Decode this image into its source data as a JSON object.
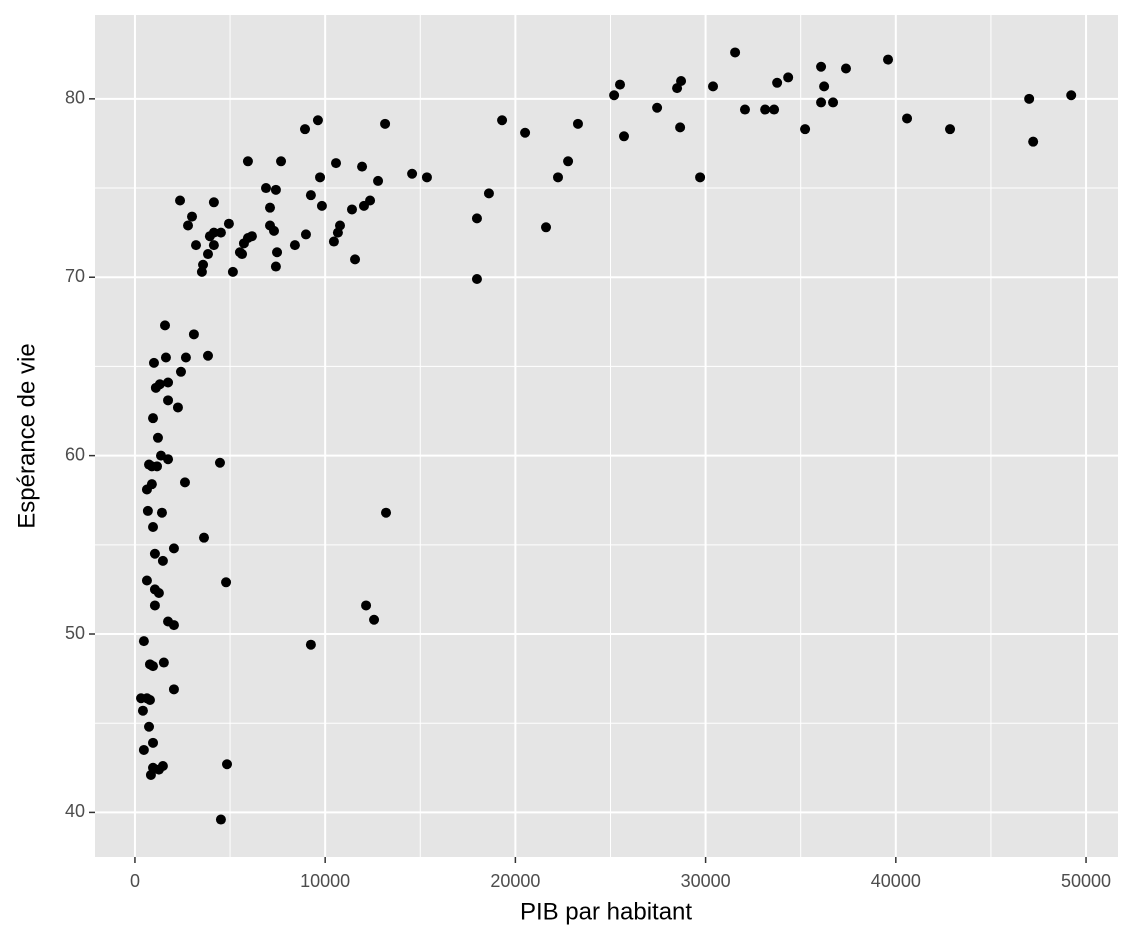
{
  "chart_data": {
    "type": "scatter",
    "x_label": "PIB par habitant",
    "y_label": "Espérance de vie",
    "color": "#000000",
    "panel_color": "#e5e5e5",
    "grid_color": "#ffffff",
    "grid": true,
    "minor_grid": true,
    "xlim": [
      -2100,
      51680
    ],
    "ylim": [
      37.5,
      84.7
    ],
    "xticks": [
      0,
      10000,
      20000,
      30000,
      40000,
      50000
    ],
    "yticks": [
      40,
      50,
      60,
      70,
      80
    ],
    "x": [
      31550,
      39590,
      37380,
      36070,
      49220,
      47010,
      36230,
      36070,
      36700,
      34340,
      33760,
      25190,
      25500,
      28710,
      28500,
      30390,
      27450,
      32070,
      33130,
      33600,
      40590,
      42850,
      35230,
      28660,
      25710,
      47220,
      29710,
      23290,
      20510,
      19300,
      22770,
      22240,
      18610,
      17980,
      21610,
      17980,
      14570,
      15350,
      13200,
      12570,
      12150,
      9250,
      4790,
      4470,
      4840,
      4520,
      13150,
      9620,
      8940,
      5940,
      7680,
      10570,
      11940,
      6890,
      7410,
      7100,
      9250,
      9830,
      12780,
      11410,
      12360,
      12040,
      10780,
      10670,
      9730,
      8990,
      10460,
      8410,
      7310,
      7100,
      7470,
      7410,
      11570,
      6150,
      5940,
      5730,
      5520,
      4940,
      4150,
      2370,
      3000,
      2790,
      4150,
      4520,
      3940,
      3210,
      4150,
      3580,
      3840,
      3520,
      5150,
      5630,
      1580,
      3100,
      1630,
      2680,
      3840,
      1000,
      2420,
      1740,
      1310,
      1100,
      1740,
      2260,
      950,
      1210,
      1370,
      1740,
      890,
      1160,
      740,
      2630,
      890,
      630,
      680,
      1420,
      950,
      2050,
      3630,
      1050,
      1470,
      630,
      1050,
      1260,
      1050,
      1740,
      2050,
      470,
      790,
      950,
      1520,
      790,
      320,
      630,
      420,
      740,
      2050,
      950,
      470,
      950,
      1470,
      840,
      1260
    ],
    "values": [
      82.6,
      82.2,
      81.7,
      81.8,
      80.2,
      80.0,
      80.7,
      79.8,
      79.8,
      81.2,
      80.9,
      80.2,
      80.8,
      81.0,
      80.6,
      80.7,
      79.5,
      79.4,
      79.4,
      79.4,
      78.9,
      78.3,
      78.3,
      78.4,
      77.9,
      77.6,
      75.6,
      78.6,
      78.1,
      78.8,
      76.5,
      75.6,
      74.7,
      73.3,
      72.8,
      69.9,
      75.8,
      75.6,
      56.8,
      50.8,
      51.6,
      49.4,
      52.9,
      59.6,
      42.7,
      39.6,
      78.6,
      78.8,
      78.3,
      76.5,
      76.5,
      76.4,
      76.2,
      75.0,
      74.9,
      73.9,
      74.6,
      74.0,
      75.4,
      73.8,
      74.3,
      74.0,
      72.9,
      72.5,
      75.6,
      72.4,
      72.0,
      71.8,
      72.6,
      72.9,
      71.4,
      70.6,
      71.0,
      72.3,
      72.2,
      71.9,
      71.4,
      73.0,
      74.2,
      74.3,
      73.4,
      72.9,
      72.5,
      72.5,
      72.3,
      71.8,
      71.8,
      70.7,
      71.3,
      70.3,
      70.3,
      71.3,
      67.3,
      66.8,
      65.5,
      65.5,
      65.6,
      65.2,
      64.7,
      64.1,
      64.0,
      63.8,
      63.1,
      62.7,
      62.1,
      61.0,
      60.0,
      59.8,
      59.4,
      59.4,
      59.5,
      58.5,
      58.4,
      58.1,
      56.9,
      56.8,
      56.0,
      54.8,
      55.4,
      54.5,
      54.1,
      53.0,
      52.5,
      52.3,
      51.6,
      50.7,
      50.5,
      49.6,
      48.3,
      48.2,
      48.4,
      46.3,
      46.4,
      46.4,
      45.7,
      44.8,
      46.9,
      43.9,
      43.5,
      42.5,
      42.6,
      42.1,
      42.4
    ]
  }
}
